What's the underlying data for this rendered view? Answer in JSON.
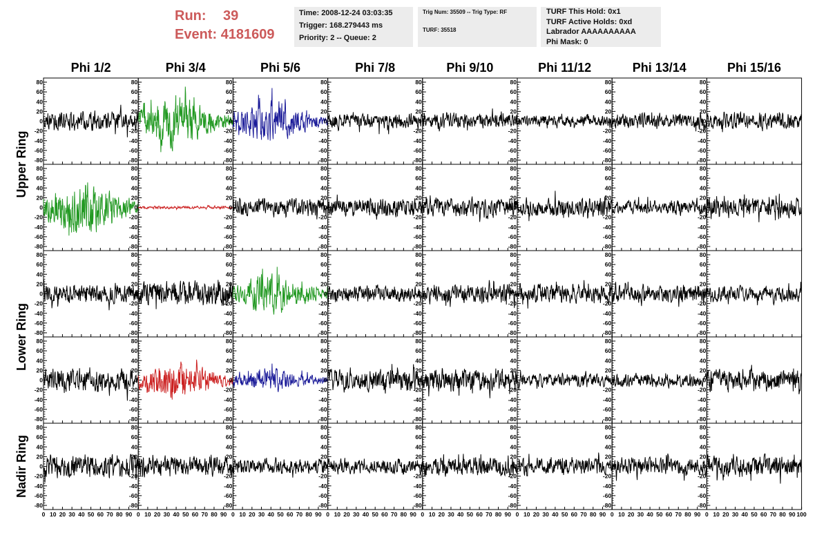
{
  "header": {
    "run_label": "Run:",
    "run_value": "39",
    "event_label": "Event:",
    "event_value": "4181609",
    "time_line": "Time: 2008-12-24 03:03:35",
    "trigger_line": "Trigger: 168.279443 ms",
    "priority_line": "Priority: 2 -- Queue: 2",
    "trig_line": "Trig Num: 35509 -- Trig Type: RF",
    "turf_line": "TURF: 35518",
    "turf_hold_line": "TURF This Hold: 0x1",
    "turf_active_line": "TURF Active Holds: 0xd",
    "labrador_line": "Labrador AAAAAAAAAA",
    "phi_mask_line": "Phi Mask: 0"
  },
  "colors": {
    "accent": "#cc5a5a",
    "trace_default": "#000000",
    "trace_green": "#229922",
    "trace_blue": "#1c1c99",
    "trace_red": "#cc2222"
  },
  "chart_data": {
    "type": "line",
    "layout": "5 rows x 8 columns of waveform panels",
    "columns": [
      "Phi 1/2",
      "Phi 3/4",
      "Phi 5/6",
      "Phi 7/8",
      "Phi 9/10",
      "Phi 11/12",
      "Phi 13/14",
      "Phi 15/16"
    ],
    "row_labels": [
      "Upper Ring",
      "Lower Ring",
      "Nadir Ring"
    ],
    "ylim": [
      -80,
      80
    ],
    "yticks": [
      80,
      60,
      40,
      20,
      0,
      -20,
      -40,
      -60,
      -80
    ],
    "xlim": [
      0,
      100
    ],
    "xticks": [
      0,
      10,
      20,
      30,
      40,
      50,
      60,
      70,
      80,
      90
    ],
    "xticks_last": [
      0,
      10,
      20,
      30,
      40,
      50,
      60,
      70,
      80,
      90,
      100
    ],
    "panels": [
      [
        {
          "color": "black",
          "amp": 20
        },
        {
          "color": "green",
          "amp": 42,
          "env": "mid"
        },
        {
          "color": "blue",
          "amp": 33,
          "env": "mid"
        },
        {
          "color": "black",
          "amp": 16
        },
        {
          "color": "black",
          "amp": 16
        },
        {
          "color": "black",
          "amp": 12
        },
        {
          "color": "black",
          "amp": 16
        },
        {
          "color": "black",
          "amp": 18
        }
      ],
      [
        {
          "color": "green",
          "amp": 45,
          "env": "mid"
        },
        {
          "color": "red",
          "amp": 3
        },
        {
          "color": "black",
          "amp": 18
        },
        {
          "color": "black",
          "amp": 20
        },
        {
          "color": "black",
          "amp": 20
        },
        {
          "color": "black",
          "amp": 20
        },
        {
          "color": "black",
          "amp": 14
        },
        {
          "color": "black",
          "amp": 22
        }
      ],
      [
        {
          "color": "black",
          "amp": 20
        },
        {
          "color": "black",
          "amp": 25
        },
        {
          "color": "green",
          "amp": 32,
          "env": "mid"
        },
        {
          "color": "black",
          "amp": 16
        },
        {
          "color": "black",
          "amp": 20
        },
        {
          "color": "black",
          "amp": 20
        },
        {
          "color": "black",
          "amp": 20
        },
        {
          "color": "black",
          "amp": 16
        }
      ],
      [
        {
          "color": "black",
          "amp": 25
        },
        {
          "color": "red",
          "amp": 32,
          "env": "mid"
        },
        {
          "color": "blue",
          "amp": 20,
          "env": "mid"
        },
        {
          "color": "black",
          "amp": 24
        },
        {
          "color": "black",
          "amp": 24
        },
        {
          "color": "black",
          "amp": 14
        },
        {
          "color": "black",
          "amp": 14
        },
        {
          "color": "black",
          "amp": 22
        }
      ],
      [
        {
          "color": "black",
          "amp": 25
        },
        {
          "color": "black",
          "amp": 22
        },
        {
          "color": "black",
          "amp": 16
        },
        {
          "color": "black",
          "amp": 16
        },
        {
          "color": "black",
          "amp": 20
        },
        {
          "color": "black",
          "amp": 18
        },
        {
          "color": "black",
          "amp": 18
        },
        {
          "color": "black",
          "amp": 22
        }
      ]
    ]
  }
}
